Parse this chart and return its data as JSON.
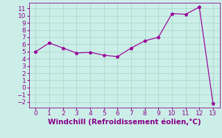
{
  "x": [
    0,
    1,
    2,
    3,
    4,
    5,
    6,
    7,
    8,
    9,
    10,
    11,
    12,
    13
  ],
  "y": [
    5.0,
    6.2,
    5.5,
    4.8,
    4.9,
    4.5,
    4.3,
    5.5,
    6.5,
    7.0,
    10.3,
    10.2,
    11.2,
    -2.2
  ],
  "line_color": "#990099",
  "marker": "*",
  "marker_size": 3.5,
  "bg_color": "#cceee8",
  "grid_color": "#aaddcc",
  "xlabel": "Windchill (Refroidissement éolien,°C)",
  "xlabel_color": "#880088",
  "xlabel_fontsize": 7.5,
  "tick_color": "#880088",
  "tick_fontsize": 6.5,
  "yticks": [
    -2,
    -1,
    0,
    1,
    2,
    3,
    4,
    5,
    6,
    7,
    8,
    9,
    10,
    11
  ],
  "xticks": [
    0,
    1,
    2,
    3,
    4,
    5,
    6,
    7,
    8,
    9,
    10,
    11,
    12,
    13
  ],
  "ylim": [
    -2.8,
    11.8
  ],
  "xlim": [
    -0.5,
    13.5
  ]
}
